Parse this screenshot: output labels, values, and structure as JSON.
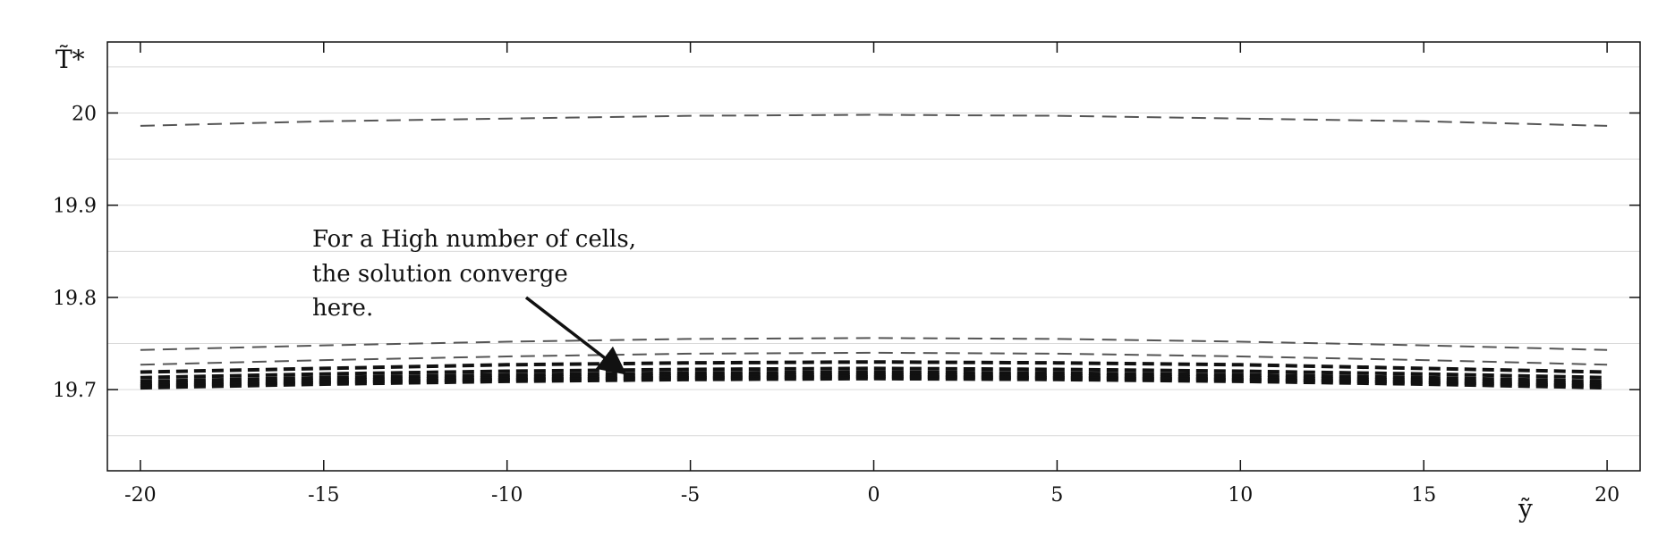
{
  "chart_data": {
    "type": "line",
    "title": "",
    "xlabel": "ỹ",
    "ylabel": "T̃*",
    "xlim": [
      -20.9,
      20.9
    ],
    "ylim": [
      19.612,
      20.077
    ],
    "xticks": [
      -20,
      -15,
      -10,
      -5,
      0,
      5,
      10,
      15,
      20
    ],
    "xtick_labels": [
      "-20",
      "-15",
      "-10",
      "-5",
      "0",
      "5",
      "10",
      "15",
      "20"
    ],
    "yticks": [
      19.7,
      19.8,
      19.9,
      20.0
    ],
    "ytick_labels": [
      "19.7",
      "19.8",
      "19.9",
      "20"
    ],
    "grid": true,
    "line_style": "dashed",
    "series": [
      {
        "x": [
          -20,
          -15,
          -10,
          -5,
          0,
          5,
          10,
          15,
          20
        ],
        "values": [
          19.986,
          19.991,
          19.994,
          19.997,
          19.998,
          19.997,
          19.994,
          19.991,
          19.986
        ]
      },
      {
        "x": [
          -20,
          -15,
          -10,
          -5,
          0,
          5,
          10,
          15,
          20
        ],
        "values": [
          19.743,
          19.748,
          19.752,
          19.755,
          19.756,
          19.755,
          19.752,
          19.748,
          19.743
        ]
      },
      {
        "x": [
          -20,
          -15,
          -10,
          -5,
          0,
          5,
          10,
          15,
          20
        ],
        "values": [
          19.727,
          19.732,
          19.736,
          19.739,
          19.74,
          19.739,
          19.736,
          19.732,
          19.727
        ]
      },
      {
        "x": [
          -20,
          -15,
          -10,
          -5,
          0,
          5,
          10,
          15,
          20
        ],
        "values": [
          19.719,
          19.723,
          19.727,
          19.729,
          19.73,
          19.729,
          19.727,
          19.723,
          19.719
        ]
      },
      {
        "x": [
          -20,
          -15,
          -10,
          -5,
          0,
          5,
          10,
          15,
          20
        ],
        "values": [
          19.713,
          19.717,
          19.72,
          19.722,
          19.723,
          19.722,
          19.72,
          19.717,
          19.713
        ]
      },
      {
        "x": [
          -20,
          -15,
          -10,
          -5,
          0,
          5,
          10,
          15,
          20
        ],
        "values": [
          19.709,
          19.713,
          19.716,
          19.718,
          19.719,
          19.718,
          19.716,
          19.713,
          19.709
        ]
      },
      {
        "x": [
          -20,
          -15,
          -10,
          -5,
          0,
          5,
          10,
          15,
          20
        ],
        "values": [
          19.706,
          19.71,
          19.713,
          19.715,
          19.716,
          19.715,
          19.713,
          19.71,
          19.706
        ]
      },
      {
        "x": [
          -20,
          -15,
          -10,
          -5,
          0,
          5,
          10,
          15,
          20
        ],
        "values": [
          19.704,
          19.708,
          19.711,
          19.713,
          19.714,
          19.713,
          19.711,
          19.708,
          19.704
        ]
      },
      {
        "x": [
          -20,
          -15,
          -10,
          -5,
          0,
          5,
          10,
          15,
          20
        ],
        "values": [
          19.702,
          19.706,
          19.709,
          19.711,
          19.712,
          19.711,
          19.709,
          19.706,
          19.702
        ]
      }
    ],
    "annotation": {
      "lines": [
        "For a High number of cells,",
        "the solution converge",
        "here."
      ],
      "arrow_tip": {
        "x": -6.8,
        "y": 19.718
      }
    }
  }
}
